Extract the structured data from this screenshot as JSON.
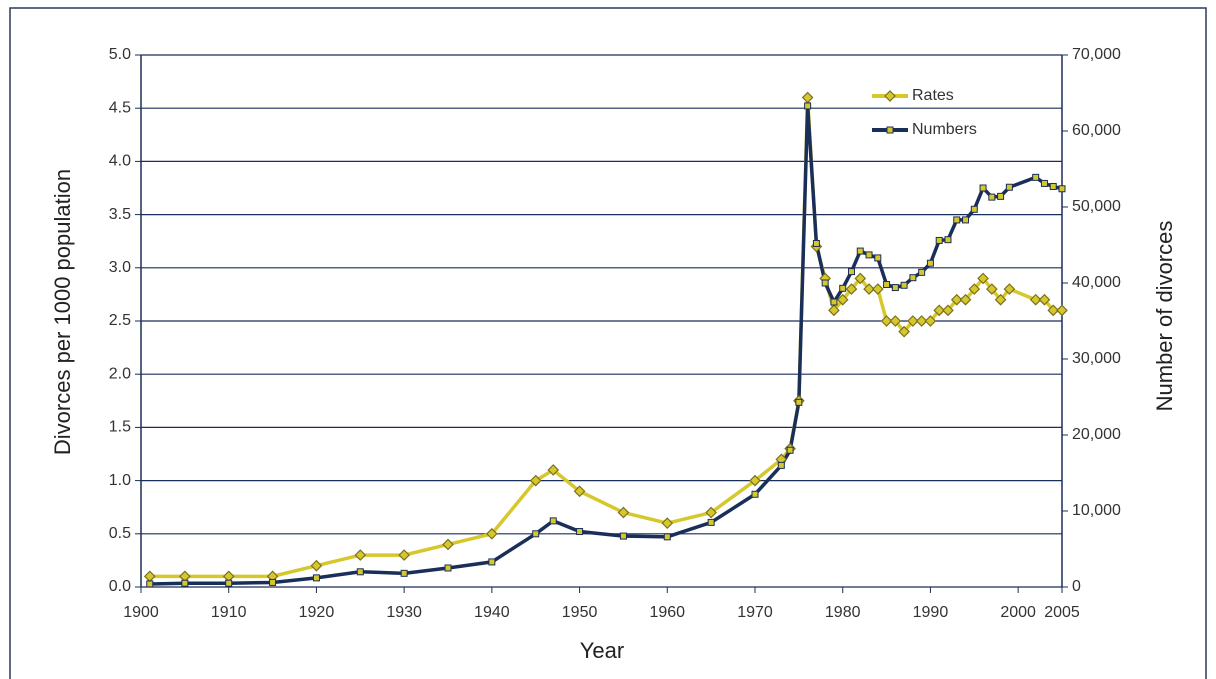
{
  "chart_data": {
    "type": "line",
    "xlabel": "Year",
    "ylabel": "Divorces per 1000 population",
    "y2label": "Number of divorces",
    "x": [
      1901,
      1905,
      1910,
      1915,
      1920,
      1925,
      1930,
      1935,
      1940,
      1945,
      1947,
      1950,
      1955,
      1960,
      1965,
      1970,
      1973,
      1974,
      1975,
      1976,
      1977,
      1978,
      1979,
      1980,
      1981,
      1982,
      1983,
      1984,
      1985,
      1986,
      1987,
      1988,
      1989,
      1990,
      1991,
      1992,
      1993,
      1994,
      1995,
      1996,
      1997,
      1998,
      1999,
      2002,
      2003,
      2004,
      2005
    ],
    "series": [
      {
        "name": "Rates",
        "color": "#d6c82c",
        "marker": "diamond",
        "values": [
          0.1,
          0.1,
          0.1,
          0.1,
          0.2,
          0.3,
          0.3,
          0.4,
          0.5,
          1.0,
          1.1,
          0.9,
          0.7,
          0.6,
          0.7,
          1.0,
          1.2,
          1.3,
          1.75,
          4.6,
          3.2,
          2.9,
          2.6,
          2.7,
          2.8,
          2.9,
          2.8,
          2.8,
          2.5,
          2.5,
          2.4,
          2.5,
          2.5,
          2.5,
          2.6,
          2.6,
          2.7,
          2.7,
          2.8,
          2.9,
          2.8,
          2.7,
          2.8,
          2.7,
          2.7,
          2.6,
          2.6
        ]
      },
      {
        "name": "Numbers",
        "color": "#1a2e5a",
        "marker": "square",
        "axis": "y2",
        "values": [
          400,
          500,
          500,
          600,
          1200,
          2000,
          1800,
          2500,
          3300,
          7000,
          8700,
          7300,
          6700,
          6600,
          8500,
          12200,
          16000,
          18000,
          24300,
          63300,
          45200,
          40000,
          37500,
          39300,
          41500,
          44200,
          43700,
          43300,
          39800,
          39400,
          39700,
          40700,
          41400,
          42600,
          45600,
          45700,
          48300,
          48300,
          49700,
          52500,
          51300,
          51400,
          52600,
          53900,
          53100,
          52700,
          52400
        ]
      }
    ],
    "xlim": [
      1900,
      2005
    ],
    "xticks": [
      1900,
      1910,
      1920,
      1930,
      1940,
      1950,
      1960,
      1970,
      1980,
      1990,
      2000,
      2005
    ],
    "ylim": [
      0,
      5
    ],
    "yticks": [
      {
        "value": 0,
        "label": "0.0"
      },
      {
        "value": 0.5,
        "label": "0.5"
      },
      {
        "value": 1,
        "label": "1.0"
      },
      {
        "value": 1.5,
        "label": "1.5"
      },
      {
        "value": 2,
        "label": "2.0"
      },
      {
        "value": 2.5,
        "label": "2.5"
      },
      {
        "value": 3,
        "label": "3.0"
      },
      {
        "value": 3.5,
        "label": "3.5"
      },
      {
        "value": 4,
        "label": "4.0"
      },
      {
        "value": 4.5,
        "label": "4.5"
      },
      {
        "value": 5,
        "label": "5.0"
      }
    ],
    "y2lim": [
      0,
      70000
    ],
    "y2ticks": [
      0,
      {
        "value": 10000,
        "label": "10,000"
      },
      {
        "value": 20000,
        "label": "20,000"
      },
      {
        "value": 30000,
        "label": "30,000"
      },
      {
        "value": 40000,
        "label": "40,000"
      },
      {
        "value": 50000,
        "label": "50,000"
      },
      {
        "value": 60000,
        "label": "60,000"
      },
      {
        "value": 70000,
        "label": "70,000"
      }
    ],
    "grid": true,
    "legend": "upper right"
  }
}
